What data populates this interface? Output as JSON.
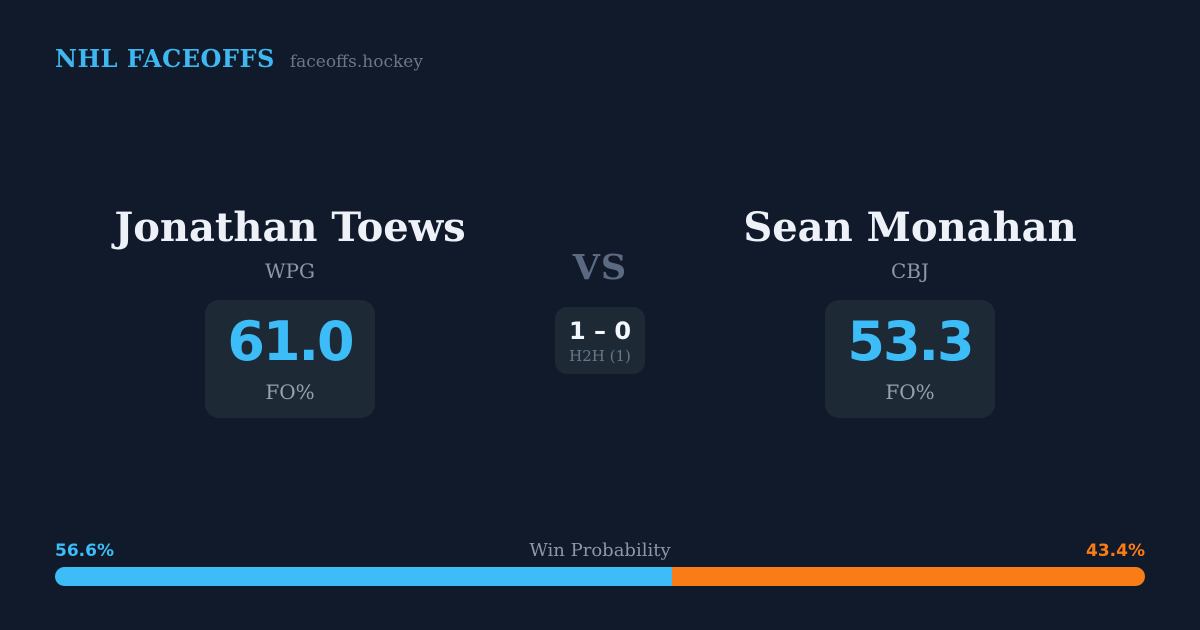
{
  "header": {
    "brand": "NHL FACEOFFS",
    "site": "faceoffs.hockey"
  },
  "players": {
    "left": {
      "name": "Jonathan Toews",
      "team": "WPG",
      "fo_pct": "61.0",
      "stat_label": "FO%"
    },
    "right": {
      "name": "Sean Monahan",
      "team": "CBJ",
      "fo_pct": "53.3",
      "stat_label": "FO%"
    }
  },
  "center": {
    "vs_label": "VS",
    "h2h_score": "1 – 0",
    "h2h_label": "H2H (1)"
  },
  "win_probability": {
    "title": "Win Probability",
    "left_pct_label": "56.6%",
    "right_pct_label": "43.4%",
    "left_value": 56.6,
    "right_value": 43.4
  },
  "colors": {
    "background": "#111a2b",
    "card": "#1e2936",
    "accent_blue": "#3cbdf8",
    "accent_orange": "#f97c16",
    "text_primary": "#eef2f8",
    "text_muted": "#8b98aa"
  },
  "chart_data": {
    "type": "bar",
    "title": "Win Probability",
    "orientation": "horizontal-stacked",
    "categories": [
      "Jonathan Toews (WPG)",
      "Sean Monahan (CBJ)"
    ],
    "series": [
      {
        "name": "Win Probability %",
        "values": [
          56.6,
          43.4
        ]
      },
      {
        "name": "FO%",
        "values": [
          61.0,
          53.3
        ]
      },
      {
        "name": "H2H wins",
        "values": [
          1,
          0
        ]
      }
    ],
    "colors": [
      "#3cbdf8",
      "#f97c16"
    ],
    "xlim": [
      0,
      100
    ],
    "legend_position": "none",
    "grid": false
  }
}
